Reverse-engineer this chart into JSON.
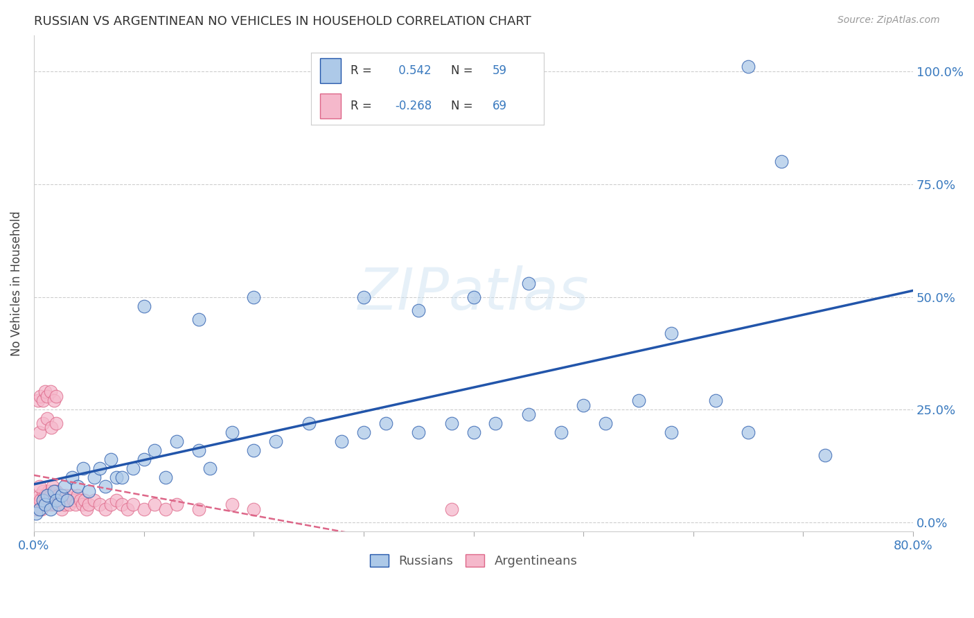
{
  "title": "RUSSIAN VS ARGENTINEAN NO VEHICLES IN HOUSEHOLD CORRELATION CHART",
  "source": "Source: ZipAtlas.com",
  "ylabel_label": "No Vehicles in Household",
  "xlim": [
    0.0,
    0.8
  ],
  "ylim": [
    -0.02,
    1.08
  ],
  "grid_color": "#c8c8c8",
  "background_color": "#ffffff",
  "russian_color": "#adc9e8",
  "argentinean_color": "#f5b8cb",
  "russian_line_color": "#2255aa",
  "argentinean_line_color": "#dd6688",
  "russian_R": 0.542,
  "russian_N": 59,
  "argentinean_R": -0.268,
  "argentinean_N": 69,
  "watermark": "ZIPatlas",
  "legend_label_russian": "Russians",
  "legend_label_argentinean": "Argentineans",
  "russian_x": [
    0.002,
    0.005,
    0.008,
    0.01,
    0.012,
    0.015,
    0.018,
    0.02,
    0.022,
    0.025,
    0.028,
    0.03,
    0.035,
    0.04,
    0.045,
    0.05,
    0.055,
    0.06,
    0.065,
    0.07,
    0.075,
    0.08,
    0.09,
    0.1,
    0.11,
    0.12,
    0.13,
    0.15,
    0.16,
    0.18,
    0.2,
    0.22,
    0.25,
    0.28,
    0.3,
    0.32,
    0.35,
    0.38,
    0.4,
    0.42,
    0.45,
    0.48,
    0.5,
    0.52,
    0.55,
    0.58,
    0.62,
    0.65,
    0.68,
    0.72,
    0.58,
    0.3,
    0.35,
    0.4,
    0.45,
    0.1,
    0.15,
    0.2,
    0.65
  ],
  "russian_y": [
    0.02,
    0.03,
    0.05,
    0.04,
    0.06,
    0.03,
    0.07,
    0.05,
    0.04,
    0.06,
    0.08,
    0.05,
    0.1,
    0.08,
    0.12,
    0.07,
    0.1,
    0.12,
    0.08,
    0.14,
    0.1,
    0.1,
    0.12,
    0.14,
    0.16,
    0.1,
    0.18,
    0.16,
    0.12,
    0.2,
    0.16,
    0.18,
    0.22,
    0.18,
    0.2,
    0.22,
    0.2,
    0.22,
    0.2,
    0.22,
    0.24,
    0.2,
    0.26,
    0.22,
    0.27,
    0.2,
    0.27,
    0.2,
    0.8,
    0.15,
    0.42,
    0.5,
    0.47,
    0.5,
    0.53,
    0.48,
    0.45,
    0.5,
    1.01
  ],
  "argentinean_x": [
    0.002,
    0.003,
    0.004,
    0.005,
    0.006,
    0.007,
    0.008,
    0.009,
    0.01,
    0.011,
    0.012,
    0.013,
    0.014,
    0.015,
    0.016,
    0.017,
    0.018,
    0.019,
    0.02,
    0.021,
    0.022,
    0.023,
    0.024,
    0.025,
    0.026,
    0.027,
    0.028,
    0.029,
    0.03,
    0.032,
    0.034,
    0.036,
    0.038,
    0.04,
    0.042,
    0.044,
    0.046,
    0.048,
    0.05,
    0.055,
    0.06,
    0.065,
    0.07,
    0.075,
    0.08,
    0.085,
    0.09,
    0.1,
    0.11,
    0.12,
    0.13,
    0.15,
    0.18,
    0.2,
    0.004,
    0.006,
    0.008,
    0.01,
    0.012,
    0.015,
    0.018,
    0.02,
    0.005,
    0.008,
    0.012,
    0.016,
    0.02,
    0.38,
    0.005
  ],
  "argentinean_y": [
    0.03,
    0.05,
    0.04,
    0.06,
    0.05,
    0.03,
    0.07,
    0.04,
    0.06,
    0.05,
    0.04,
    0.07,
    0.05,
    0.06,
    0.04,
    0.08,
    0.05,
    0.04,
    0.07,
    0.05,
    0.06,
    0.04,
    0.05,
    0.03,
    0.06,
    0.05,
    0.04,
    0.06,
    0.05,
    0.04,
    0.06,
    0.05,
    0.04,
    0.06,
    0.05,
    0.04,
    0.05,
    0.03,
    0.04,
    0.05,
    0.04,
    0.03,
    0.04,
    0.05,
    0.04,
    0.03,
    0.04,
    0.03,
    0.04,
    0.03,
    0.04,
    0.03,
    0.04,
    0.03,
    0.27,
    0.28,
    0.27,
    0.29,
    0.28,
    0.29,
    0.27,
    0.28,
    0.2,
    0.22,
    0.23,
    0.21,
    0.22,
    0.03,
    0.08
  ]
}
